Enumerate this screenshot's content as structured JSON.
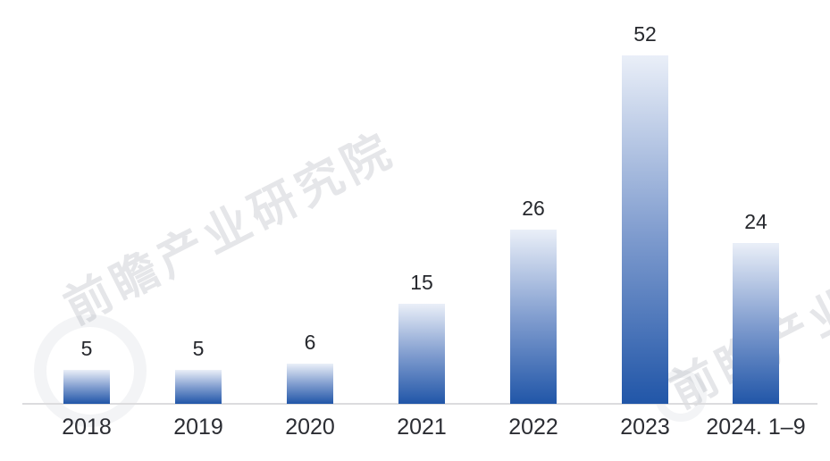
{
  "chart_data": {
    "type": "bar",
    "categories": [
      "2018",
      "2019",
      "2020",
      "2021",
      "2022",
      "2023",
      "2024. 1–9"
    ],
    "values": [
      5,
      5,
      6,
      15,
      26,
      52,
      24
    ],
    "title": "",
    "xlabel": "",
    "ylabel": "",
    "ylim": [
      0,
      52
    ],
    "grid": false,
    "legend_position": "none",
    "bar_gradient_top": "#eaeff8",
    "bar_gradient_mid": "#7e9bce",
    "bar_gradient_bottom": "#2156a8",
    "axis_line_color": "#dcdcde",
    "value_label_color": "#26282d",
    "category_label_color": "#2b2d33"
  },
  "watermark": {
    "text": "前瞻产业研究院",
    "color": "rgba(125,131,144,0.20)"
  }
}
